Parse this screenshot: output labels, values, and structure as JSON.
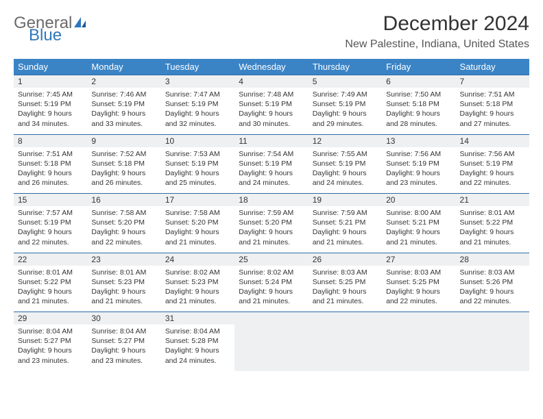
{
  "logo": {
    "part1": "General",
    "part2": "Blue"
  },
  "title": "December 2024",
  "location": "New Palestine, Indiana, United States",
  "header_color": "#3a84c6",
  "daynum_bg": "#eef0f2",
  "border_color": "#2f6aa0",
  "weekdays": [
    "Sunday",
    "Monday",
    "Tuesday",
    "Wednesday",
    "Thursday",
    "Friday",
    "Saturday"
  ],
  "weeks": [
    {
      "nums": [
        "1",
        "2",
        "3",
        "4",
        "5",
        "6",
        "7"
      ],
      "cells": [
        {
          "sunrise": "Sunrise: 7:45 AM",
          "sunset": "Sunset: 5:19 PM",
          "day1": "Daylight: 9 hours",
          "day2": "and 34 minutes."
        },
        {
          "sunrise": "Sunrise: 7:46 AM",
          "sunset": "Sunset: 5:19 PM",
          "day1": "Daylight: 9 hours",
          "day2": "and 33 minutes."
        },
        {
          "sunrise": "Sunrise: 7:47 AM",
          "sunset": "Sunset: 5:19 PM",
          "day1": "Daylight: 9 hours",
          "day2": "and 32 minutes."
        },
        {
          "sunrise": "Sunrise: 7:48 AM",
          "sunset": "Sunset: 5:19 PM",
          "day1": "Daylight: 9 hours",
          "day2": "and 30 minutes."
        },
        {
          "sunrise": "Sunrise: 7:49 AM",
          "sunset": "Sunset: 5:19 PM",
          "day1": "Daylight: 9 hours",
          "day2": "and 29 minutes."
        },
        {
          "sunrise": "Sunrise: 7:50 AM",
          "sunset": "Sunset: 5:18 PM",
          "day1": "Daylight: 9 hours",
          "day2": "and 28 minutes."
        },
        {
          "sunrise": "Sunrise: 7:51 AM",
          "sunset": "Sunset: 5:18 PM",
          "day1": "Daylight: 9 hours",
          "day2": "and 27 minutes."
        }
      ]
    },
    {
      "nums": [
        "8",
        "9",
        "10",
        "11",
        "12",
        "13",
        "14"
      ],
      "cells": [
        {
          "sunrise": "Sunrise: 7:51 AM",
          "sunset": "Sunset: 5:18 PM",
          "day1": "Daylight: 9 hours",
          "day2": "and 26 minutes."
        },
        {
          "sunrise": "Sunrise: 7:52 AM",
          "sunset": "Sunset: 5:18 PM",
          "day1": "Daylight: 9 hours",
          "day2": "and 26 minutes."
        },
        {
          "sunrise": "Sunrise: 7:53 AM",
          "sunset": "Sunset: 5:19 PM",
          "day1": "Daylight: 9 hours",
          "day2": "and 25 minutes."
        },
        {
          "sunrise": "Sunrise: 7:54 AM",
          "sunset": "Sunset: 5:19 PM",
          "day1": "Daylight: 9 hours",
          "day2": "and 24 minutes."
        },
        {
          "sunrise": "Sunrise: 7:55 AM",
          "sunset": "Sunset: 5:19 PM",
          "day1": "Daylight: 9 hours",
          "day2": "and 24 minutes."
        },
        {
          "sunrise": "Sunrise: 7:56 AM",
          "sunset": "Sunset: 5:19 PM",
          "day1": "Daylight: 9 hours",
          "day2": "and 23 minutes."
        },
        {
          "sunrise": "Sunrise: 7:56 AM",
          "sunset": "Sunset: 5:19 PM",
          "day1": "Daylight: 9 hours",
          "day2": "and 22 minutes."
        }
      ]
    },
    {
      "nums": [
        "15",
        "16",
        "17",
        "18",
        "19",
        "20",
        "21"
      ],
      "cells": [
        {
          "sunrise": "Sunrise: 7:57 AM",
          "sunset": "Sunset: 5:19 PM",
          "day1": "Daylight: 9 hours",
          "day2": "and 22 minutes."
        },
        {
          "sunrise": "Sunrise: 7:58 AM",
          "sunset": "Sunset: 5:20 PM",
          "day1": "Daylight: 9 hours",
          "day2": "and 22 minutes."
        },
        {
          "sunrise": "Sunrise: 7:58 AM",
          "sunset": "Sunset: 5:20 PM",
          "day1": "Daylight: 9 hours",
          "day2": "and 21 minutes."
        },
        {
          "sunrise": "Sunrise: 7:59 AM",
          "sunset": "Sunset: 5:20 PM",
          "day1": "Daylight: 9 hours",
          "day2": "and 21 minutes."
        },
        {
          "sunrise": "Sunrise: 7:59 AM",
          "sunset": "Sunset: 5:21 PM",
          "day1": "Daylight: 9 hours",
          "day2": "and 21 minutes."
        },
        {
          "sunrise": "Sunrise: 8:00 AM",
          "sunset": "Sunset: 5:21 PM",
          "day1": "Daylight: 9 hours",
          "day2": "and 21 minutes."
        },
        {
          "sunrise": "Sunrise: 8:01 AM",
          "sunset": "Sunset: 5:22 PM",
          "day1": "Daylight: 9 hours",
          "day2": "and 21 minutes."
        }
      ]
    },
    {
      "nums": [
        "22",
        "23",
        "24",
        "25",
        "26",
        "27",
        "28"
      ],
      "cells": [
        {
          "sunrise": "Sunrise: 8:01 AM",
          "sunset": "Sunset: 5:22 PM",
          "day1": "Daylight: 9 hours",
          "day2": "and 21 minutes."
        },
        {
          "sunrise": "Sunrise: 8:01 AM",
          "sunset": "Sunset: 5:23 PM",
          "day1": "Daylight: 9 hours",
          "day2": "and 21 minutes."
        },
        {
          "sunrise": "Sunrise: 8:02 AM",
          "sunset": "Sunset: 5:23 PM",
          "day1": "Daylight: 9 hours",
          "day2": "and 21 minutes."
        },
        {
          "sunrise": "Sunrise: 8:02 AM",
          "sunset": "Sunset: 5:24 PM",
          "day1": "Daylight: 9 hours",
          "day2": "and 21 minutes."
        },
        {
          "sunrise": "Sunrise: 8:03 AM",
          "sunset": "Sunset: 5:25 PM",
          "day1": "Daylight: 9 hours",
          "day2": "and 21 minutes."
        },
        {
          "sunrise": "Sunrise: 8:03 AM",
          "sunset": "Sunset: 5:25 PM",
          "day1": "Daylight: 9 hours",
          "day2": "and 22 minutes."
        },
        {
          "sunrise": "Sunrise: 8:03 AM",
          "sunset": "Sunset: 5:26 PM",
          "day1": "Daylight: 9 hours",
          "day2": "and 22 minutes."
        }
      ]
    },
    {
      "nums": [
        "29",
        "30",
        "31",
        "",
        "",
        "",
        ""
      ],
      "cells": [
        {
          "sunrise": "Sunrise: 8:04 AM",
          "sunset": "Sunset: 5:27 PM",
          "day1": "Daylight: 9 hours",
          "day2": "and 23 minutes."
        },
        {
          "sunrise": "Sunrise: 8:04 AM",
          "sunset": "Sunset: 5:27 PM",
          "day1": "Daylight: 9 hours",
          "day2": "and 23 minutes."
        },
        {
          "sunrise": "Sunrise: 8:04 AM",
          "sunset": "Sunset: 5:28 PM",
          "day1": "Daylight: 9 hours",
          "day2": "and 24 minutes."
        },
        null,
        null,
        null,
        null
      ]
    }
  ]
}
